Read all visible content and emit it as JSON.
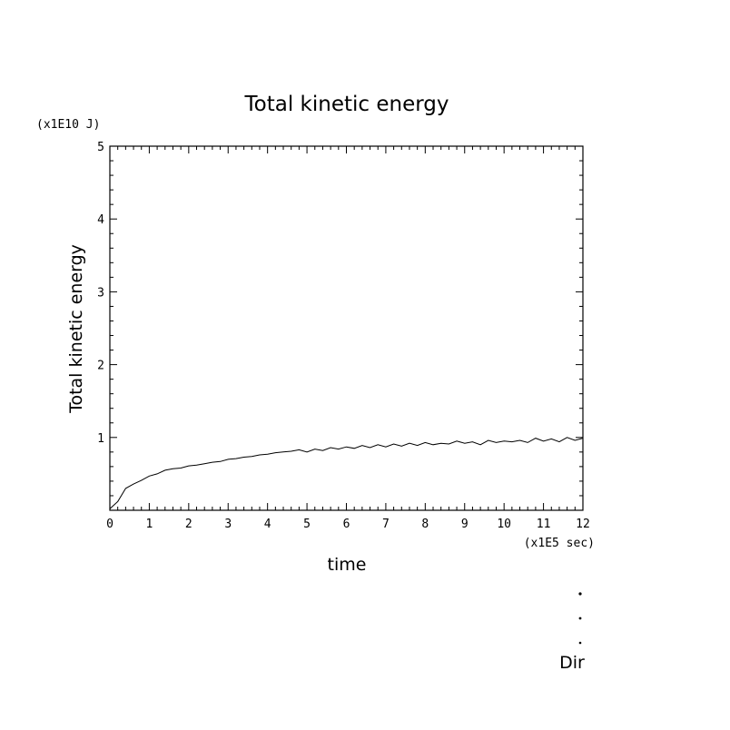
{
  "chart_data": {
    "type": "line",
    "title": "Total kinetic energy",
    "xlabel": "time",
    "ylabel": "Total kinetic energy",
    "x_unit": "(x1E5 sec)",
    "y_unit": "(x1E10 J)",
    "xlim": [
      0,
      12
    ],
    "ylim": [
      0,
      5
    ],
    "x_ticks": [
      "0",
      "1",
      "2",
      "3",
      "4",
      "5",
      "6",
      "7",
      "8",
      "9",
      "10",
      "11",
      "12"
    ],
    "y_ticks": [
      "1",
      "2",
      "3",
      "4",
      "5"
    ],
    "grid": false,
    "series": [
      {
        "x": [
          0,
          0.2,
          0.4,
          0.6,
          0.8,
          1.0,
          1.2,
          1.4,
          1.6,
          1.8,
          2.0,
          2.2,
          2.4,
          2.6,
          2.8,
          3.0,
          3.2,
          3.4,
          3.6,
          3.8,
          4.0,
          4.2,
          4.4,
          4.6,
          4.8,
          5.0,
          5.2,
          5.4,
          5.6,
          5.8,
          6.0,
          6.2,
          6.4,
          6.6,
          6.8,
          7.0,
          7.2,
          7.4,
          7.6,
          7.8,
          8.0,
          8.2,
          8.4,
          8.6,
          8.8,
          9.0,
          9.2,
          9.4,
          9.6,
          9.8,
          10.0,
          10.2,
          10.4,
          10.6,
          10.8,
          11.0,
          11.2,
          11.4,
          11.6,
          11.8,
          12.0
        ],
        "y": [
          0.02,
          0.12,
          0.3,
          0.36,
          0.41,
          0.47,
          0.5,
          0.55,
          0.57,
          0.58,
          0.61,
          0.62,
          0.64,
          0.66,
          0.67,
          0.7,
          0.71,
          0.73,
          0.74,
          0.76,
          0.77,
          0.79,
          0.8,
          0.81,
          0.83,
          0.8,
          0.84,
          0.82,
          0.86,
          0.84,
          0.87,
          0.85,
          0.89,
          0.86,
          0.9,
          0.87,
          0.91,
          0.88,
          0.92,
          0.89,
          0.93,
          0.9,
          0.92,
          0.91,
          0.95,
          0.92,
          0.94,
          0.9,
          0.96,
          0.93,
          0.95,
          0.94,
          0.96,
          0.93,
          0.99,
          0.95,
          0.98,
          0.94,
          1.0,
          0.96,
          0.99
        ]
      }
    ]
  },
  "footer": {
    "direction_label": "Dir"
  }
}
